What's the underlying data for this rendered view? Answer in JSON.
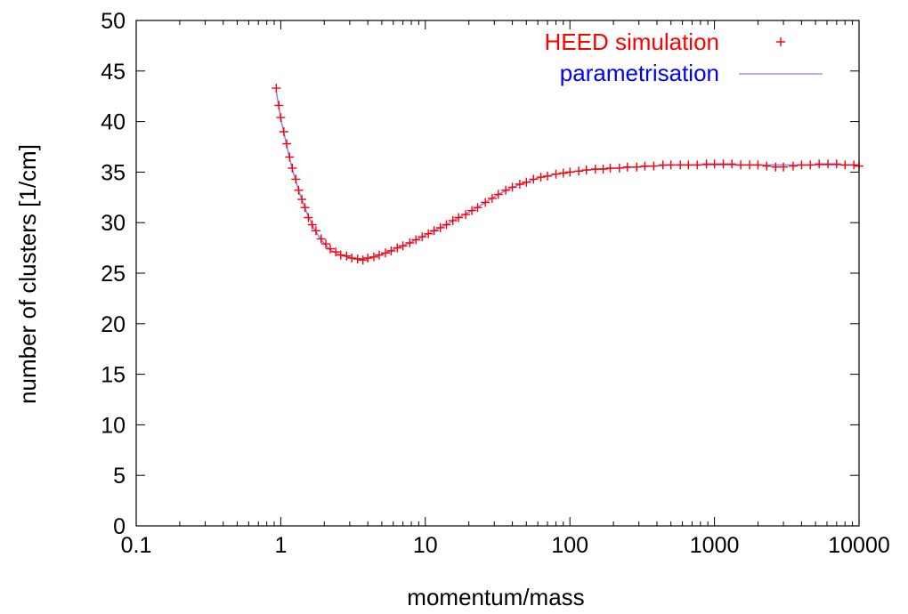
{
  "chart_data": {
    "type": "scatter",
    "title": "",
    "xlabel": "momentum/mass",
    "ylabel": "number of clusters [1/cm]",
    "x_scale": "log",
    "xlim": [
      0.1,
      10000
    ],
    "ylim": [
      0,
      50
    ],
    "x_ticks": [
      0.1,
      1,
      10,
      100,
      1000,
      10000
    ],
    "x_tick_labels": [
      "0.1",
      "1",
      "10",
      "100",
      "1000",
      "10000"
    ],
    "y_ticks": [
      0,
      5,
      10,
      15,
      20,
      25,
      30,
      35,
      40,
      45,
      50
    ],
    "y_tick_labels": [
      "0",
      "5",
      "10",
      "15",
      "20",
      "25",
      "30",
      "35",
      "40",
      "45",
      "50"
    ],
    "grid": false,
    "legend_position": "top-right",
    "series": [
      {
        "name": "HEED simulation",
        "kind": "points",
        "marker": "plus",
        "color": "#ff0000",
        "points": [
          [
            0.93,
            43.3
          ],
          [
            0.97,
            41.6
          ],
          [
            1.0,
            40.4
          ],
          [
            1.05,
            39.0
          ],
          [
            1.1,
            37.8
          ],
          [
            1.15,
            36.5
          ],
          [
            1.2,
            35.4
          ],
          [
            1.27,
            34.3
          ],
          [
            1.33,
            33.2
          ],
          [
            1.4,
            32.3
          ],
          [
            1.47,
            31.5
          ],
          [
            1.55,
            30.5
          ],
          [
            1.65,
            29.8
          ],
          [
            1.75,
            29.2
          ],
          [
            1.9,
            28.4
          ],
          [
            2.05,
            27.9
          ],
          [
            2.2,
            27.4
          ],
          [
            2.4,
            27.1
          ],
          [
            2.6,
            26.8
          ],
          [
            2.85,
            26.7
          ],
          [
            3.1,
            26.5
          ],
          [
            3.4,
            26.4
          ],
          [
            3.7,
            26.3
          ],
          [
            4.0,
            26.5
          ],
          [
            4.4,
            26.6
          ],
          [
            4.8,
            26.8
          ],
          [
            5.3,
            27.0
          ],
          [
            5.8,
            27.2
          ],
          [
            6.4,
            27.5
          ],
          [
            7.0,
            27.7
          ],
          [
            7.8,
            28.0
          ],
          [
            8.6,
            28.3
          ],
          [
            9.5,
            28.6
          ],
          [
            10.5,
            28.9
          ],
          [
            11.5,
            29.2
          ],
          [
            12.7,
            29.5
          ],
          [
            14.0,
            29.8
          ],
          [
            15.5,
            30.2
          ],
          [
            17,
            30.5
          ],
          [
            19,
            30.8
          ],
          [
            21,
            31.2
          ],
          [
            23,
            31.5
          ],
          [
            26,
            32.0
          ],
          [
            29,
            32.4
          ],
          [
            32,
            32.8
          ],
          [
            36,
            33.2
          ],
          [
            40,
            33.5
          ],
          [
            45,
            33.8
          ],
          [
            50,
            34.0
          ],
          [
            56,
            34.3
          ],
          [
            63,
            34.5
          ],
          [
            70,
            34.6
          ],
          [
            80,
            34.8
          ],
          [
            90,
            34.9
          ],
          [
            100,
            35.0
          ],
          [
            115,
            35.1
          ],
          [
            130,
            35.2
          ],
          [
            150,
            35.3
          ],
          [
            170,
            35.3
          ],
          [
            190,
            35.4
          ],
          [
            220,
            35.4
          ],
          [
            250,
            35.5
          ],
          [
            290,
            35.5
          ],
          [
            330,
            35.6
          ],
          [
            380,
            35.6
          ],
          [
            440,
            35.7
          ],
          [
            500,
            35.7
          ],
          [
            580,
            35.7
          ],
          [
            660,
            35.7
          ],
          [
            760,
            35.7
          ],
          [
            880,
            35.8
          ],
          [
            1000,
            35.8
          ],
          [
            1150,
            35.8
          ],
          [
            1320,
            35.8
          ],
          [
            1520,
            35.7
          ],
          [
            1750,
            35.7
          ],
          [
            2000,
            35.7
          ],
          [
            2300,
            35.6
          ],
          [
            2650,
            35.5
          ],
          [
            3000,
            35.5
          ],
          [
            3500,
            35.6
          ],
          [
            4000,
            35.7
          ],
          [
            4600,
            35.7
          ],
          [
            5300,
            35.8
          ],
          [
            6100,
            35.8
          ],
          [
            7000,
            35.8
          ],
          [
            8000,
            35.7
          ],
          [
            9200,
            35.7
          ],
          [
            10000,
            35.6
          ]
        ]
      },
      {
        "name": "parametrisation",
        "kind": "line",
        "color": "#8080ff",
        "points": [
          [
            0.93,
            43.0
          ],
          [
            1.0,
            40.3
          ],
          [
            1.1,
            37.6
          ],
          [
            1.2,
            35.3
          ],
          [
            1.35,
            32.9
          ],
          [
            1.5,
            31.1
          ],
          [
            1.7,
            29.4
          ],
          [
            1.9,
            28.3
          ],
          [
            2.2,
            27.3
          ],
          [
            2.6,
            26.8
          ],
          [
            3.1,
            26.5
          ],
          [
            3.7,
            26.4
          ],
          [
            4.4,
            26.6
          ],
          [
            5.3,
            27.0
          ],
          [
            6.4,
            27.5
          ],
          [
            7.8,
            28.0
          ],
          [
            9.5,
            28.6
          ],
          [
            11.5,
            29.2
          ],
          [
            14,
            29.8
          ],
          [
            17,
            30.5
          ],
          [
            21,
            31.2
          ],
          [
            26,
            32.0
          ],
          [
            32,
            32.8
          ],
          [
            40,
            33.5
          ],
          [
            50,
            34.0
          ],
          [
            63,
            34.5
          ],
          [
            80,
            34.8
          ],
          [
            100,
            35.0
          ],
          [
            130,
            35.2
          ],
          [
            170,
            35.3
          ],
          [
            220,
            35.4
          ],
          [
            290,
            35.5
          ],
          [
            380,
            35.6
          ],
          [
            500,
            35.7
          ],
          [
            660,
            35.7
          ],
          [
            880,
            35.7
          ],
          [
            1150,
            35.7
          ],
          [
            1520,
            35.7
          ],
          [
            2000,
            35.7
          ],
          [
            3000,
            35.7
          ],
          [
            4600,
            35.7
          ],
          [
            7000,
            35.7
          ],
          [
            10000,
            35.7
          ]
        ]
      }
    ]
  }
}
